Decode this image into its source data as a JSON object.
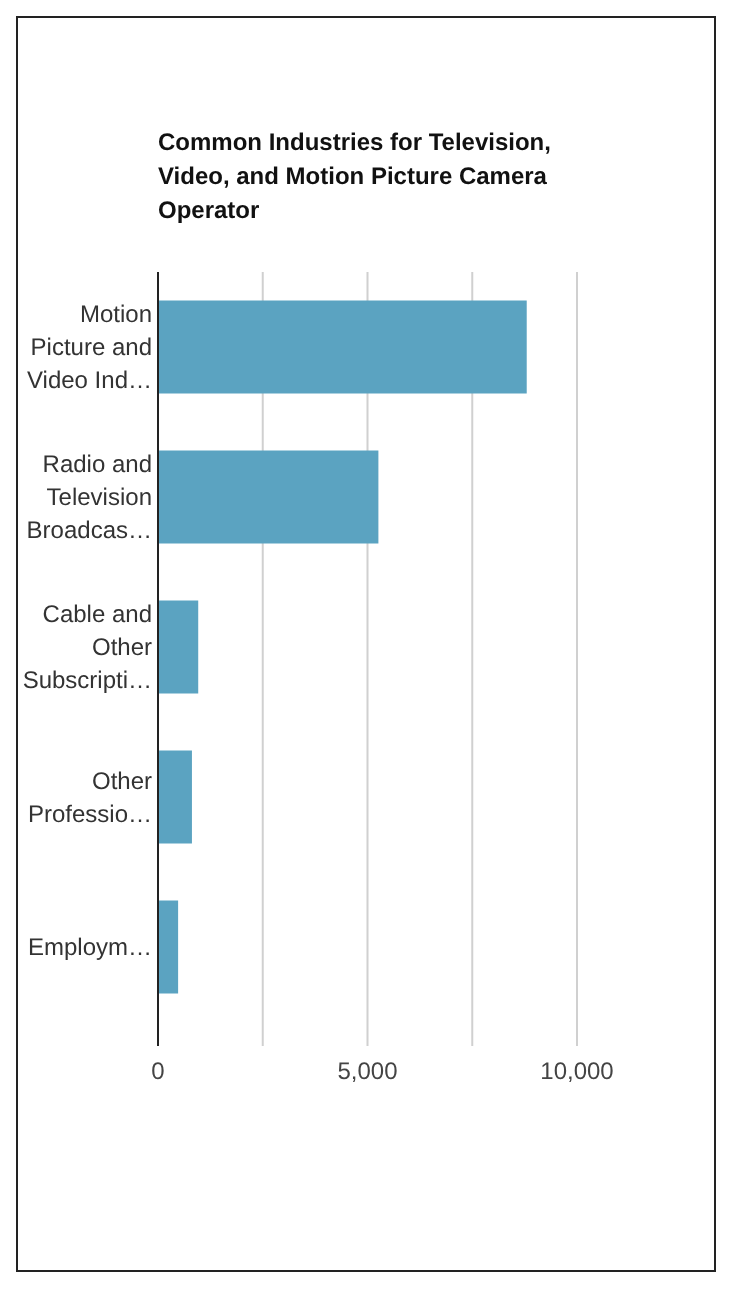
{
  "chart_data": {
    "type": "bar",
    "orientation": "horizontal",
    "title": "Common Industries for Television, Video, and Motion Picture Camera Operator",
    "categories": [
      "Motion Picture and Video Ind…",
      "Radio and Television Broadcas…",
      "Cable and Other Subscripti…",
      "Other Professio…",
      "Employm…"
    ],
    "values": [
      8800,
      5260,
      960,
      810,
      480
    ],
    "color": "#5ba3c1",
    "xlim": [
      0,
      10000
    ],
    "xticks": [
      0,
      {
        "value": 2500,
        "label": null
      },
      {
        "value": 5000,
        "label": "5,000"
      },
      {
        "value": 7500,
        "label": null
      },
      {
        "value": 10000,
        "label": "10,000"
      }
    ],
    "grid": "x"
  }
}
